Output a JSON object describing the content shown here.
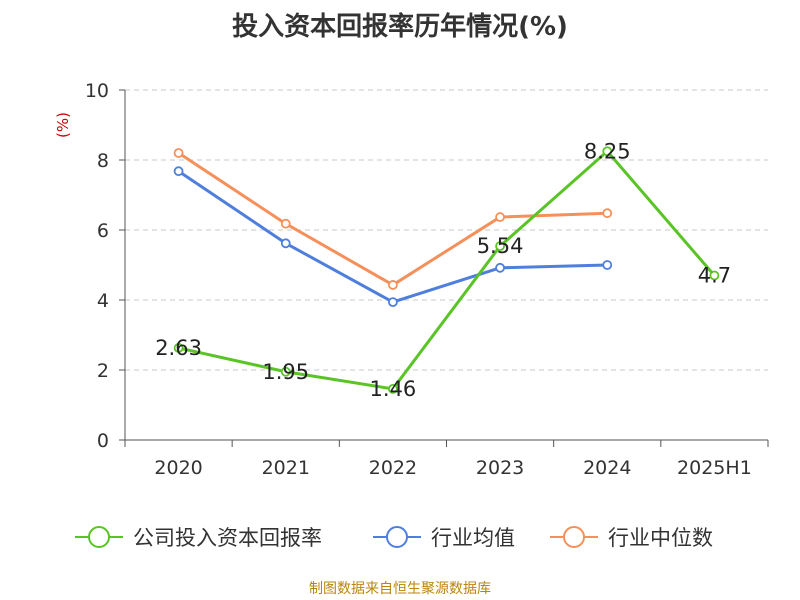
{
  "title": "投入资本回报率历年情况(%)",
  "footer": "制图数据来自恒生聚源数据库",
  "chart_data": {
    "type": "line",
    "title": "投入资本回报率历年情况(%)",
    "ylabel": "(%)",
    "xlabel": "",
    "categories": [
      "2020",
      "2021",
      "2022",
      "2023",
      "2024",
      "2025H1"
    ],
    "ylim": [
      0,
      10
    ],
    "yticks": [
      0,
      2,
      4,
      6,
      8,
      10
    ],
    "grid": true,
    "legend_position": "bottom",
    "series": [
      {
        "name": "公司投入资本回报率",
        "color": "#5ac427",
        "values": [
          2.63,
          1.95,
          1.46,
          5.54,
          8.25,
          4.7
        ],
        "value_labels": [
          "2.63",
          "1.95",
          "1.46",
          "5.54",
          "8.25",
          "4.7"
        ]
      },
      {
        "name": "行业均值",
        "color": "#4f7fdc",
        "values": [
          7.68,
          5.62,
          3.94,
          4.92,
          5.0,
          null
        ]
      },
      {
        "name": "行业中位数",
        "color": "#f5905a",
        "values": [
          8.2,
          6.18,
          4.43,
          6.37,
          6.48,
          null
        ]
      }
    ]
  }
}
